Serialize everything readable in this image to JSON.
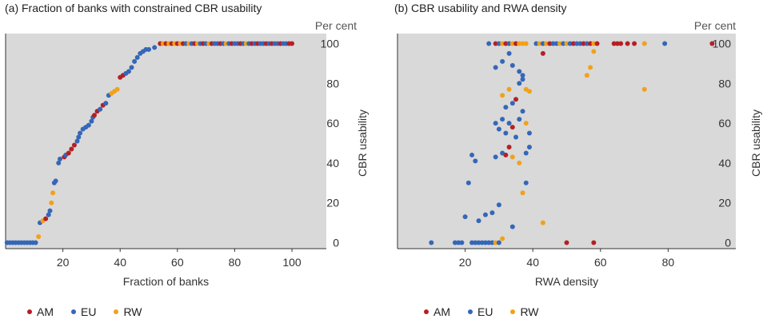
{
  "colors": {
    "AM": "#b52025",
    "EU": "#3567b8",
    "RW": "#f0a21a",
    "plot_bg": "#d9d9d9"
  },
  "legend": [
    {
      "key": "AM",
      "label": "AM"
    },
    {
      "key": "EU",
      "label": "EU"
    },
    {
      "key": "RW",
      "label": "RW"
    }
  ],
  "chart_data": [
    {
      "type": "scatter",
      "title": "(a) Fraction of banks with constrained CBR usability",
      "xlabel": "Fraction of banks",
      "ylabel": "CBR usability",
      "yunit": "Per cent",
      "xlim": [
        0,
        112
      ],
      "ylim": [
        -3,
        105
      ],
      "xticks": [
        20,
        40,
        60,
        80,
        100
      ],
      "yticks": [
        0,
        20,
        40,
        60,
        80,
        100
      ],
      "grid": false,
      "legend_position": "bottom-left",
      "points": [
        {
          "x": 0.5,
          "y": 0,
          "s": "EU"
        },
        {
          "x": 1.5,
          "y": 0,
          "s": "EU"
        },
        {
          "x": 2.5,
          "y": 0,
          "s": "EU"
        },
        {
          "x": 3.5,
          "y": 0,
          "s": "EU"
        },
        {
          "x": 4.5,
          "y": 0,
          "s": "EU"
        },
        {
          "x": 5.5,
          "y": 0,
          "s": "EU"
        },
        {
          "x": 6.5,
          "y": 0,
          "s": "EU"
        },
        {
          "x": 7.5,
          "y": 0,
          "s": "EU"
        },
        {
          "x": 8.5,
          "y": 0,
          "s": "EU"
        },
        {
          "x": 9.5,
          "y": 0,
          "s": "EU"
        },
        {
          "x": 10.5,
          "y": 0,
          "s": "EU"
        },
        {
          "x": 11.5,
          "y": 3,
          "s": "RW"
        },
        {
          "x": 12,
          "y": 10,
          "s": "EU"
        },
        {
          "x": 13,
          "y": 11,
          "s": "RW"
        },
        {
          "x": 14,
          "y": 12,
          "s": "AM"
        },
        {
          "x": 15,
          "y": 14,
          "s": "EU"
        },
        {
          "x": 15.5,
          "y": 16,
          "s": "EU"
        },
        {
          "x": 16,
          "y": 20,
          "s": "RW"
        },
        {
          "x": 16.5,
          "y": 25,
          "s": "RW"
        },
        {
          "x": 17,
          "y": 30,
          "s": "EU"
        },
        {
          "x": 17.5,
          "y": 31,
          "s": "EU"
        },
        {
          "x": 18.5,
          "y": 40,
          "s": "EU"
        },
        {
          "x": 19,
          "y": 42,
          "s": "EU"
        },
        {
          "x": 20.5,
          "y": 43,
          "s": "AM"
        },
        {
          "x": 21,
          "y": 44,
          "s": "EU"
        },
        {
          "x": 22,
          "y": 45,
          "s": "AM"
        },
        {
          "x": 23,
          "y": 47,
          "s": "AM"
        },
        {
          "x": 24,
          "y": 49,
          "s": "AM"
        },
        {
          "x": 25,
          "y": 51,
          "s": "EU"
        },
        {
          "x": 25.5,
          "y": 53,
          "s": "EU"
        },
        {
          "x": 26,
          "y": 55,
          "s": "EU"
        },
        {
          "x": 27,
          "y": 57,
          "s": "EU"
        },
        {
          "x": 28,
          "y": 58,
          "s": "EU"
        },
        {
          "x": 29,
          "y": 59,
          "s": "EU"
        },
        {
          "x": 30,
          "y": 61,
          "s": "EU"
        },
        {
          "x": 30.5,
          "y": 63,
          "s": "EU"
        },
        {
          "x": 31,
          "y": 64,
          "s": "AM"
        },
        {
          "x": 32,
          "y": 66,
          "s": "AM"
        },
        {
          "x": 33,
          "y": 67,
          "s": "EU"
        },
        {
          "x": 34,
          "y": 69,
          "s": "AM"
        },
        {
          "x": 35,
          "y": 70,
          "s": "EU"
        },
        {
          "x": 36,
          "y": 74,
          "s": "EU"
        },
        {
          "x": 37,
          "y": 75,
          "s": "RW"
        },
        {
          "x": 38,
          "y": 76,
          "s": "RW"
        },
        {
          "x": 39,
          "y": 77,
          "s": "RW"
        },
        {
          "x": 40,
          "y": 83,
          "s": "AM"
        },
        {
          "x": 41,
          "y": 84,
          "s": "AM"
        },
        {
          "x": 42,
          "y": 85,
          "s": "EU"
        },
        {
          "x": 43,
          "y": 86,
          "s": "EU"
        },
        {
          "x": 44,
          "y": 88,
          "s": "EU"
        },
        {
          "x": 45,
          "y": 91,
          "s": "EU"
        },
        {
          "x": 46,
          "y": 93,
          "s": "EU"
        },
        {
          "x": 47,
          "y": 95,
          "s": "EU"
        },
        {
          "x": 48,
          "y": 96,
          "s": "EU"
        },
        {
          "x": 49,
          "y": 97,
          "s": "EU"
        },
        {
          "x": 50,
          "y": 97,
          "s": "EU"
        },
        {
          "x": 52,
          "y": 98,
          "s": "EU"
        },
        {
          "x": 54,
          "y": 100,
          "s": "AM"
        },
        {
          "x": 55,
          "y": 100,
          "s": "RW"
        },
        {
          "x": 56,
          "y": 100,
          "s": "AM"
        },
        {
          "x": 57,
          "y": 100,
          "s": "RW"
        },
        {
          "x": 58,
          "y": 100,
          "s": "AM"
        },
        {
          "x": 59,
          "y": 100,
          "s": "RW"
        },
        {
          "x": 60,
          "y": 100,
          "s": "AM"
        },
        {
          "x": 61,
          "y": 100,
          "s": "RW"
        },
        {
          "x": 62,
          "y": 100,
          "s": "AM"
        },
        {
          "x": 63,
          "y": 100,
          "s": "EU"
        },
        {
          "x": 64,
          "y": 100,
          "s": "RW"
        },
        {
          "x": 65,
          "y": 100,
          "s": "EU"
        },
        {
          "x": 66,
          "y": 100,
          "s": "AM"
        },
        {
          "x": 67,
          "y": 100,
          "s": "RW"
        },
        {
          "x": 68,
          "y": 100,
          "s": "EU"
        },
        {
          "x": 69,
          "y": 100,
          "s": "AM"
        },
        {
          "x": 70,
          "y": 100,
          "s": "EU"
        },
        {
          "x": 71,
          "y": 100,
          "s": "RW"
        },
        {
          "x": 72,
          "y": 100,
          "s": "AM"
        },
        {
          "x": 73,
          "y": 100,
          "s": "EU"
        },
        {
          "x": 74,
          "y": 100,
          "s": "EU"
        },
        {
          "x": 75,
          "y": 100,
          "s": "AM"
        },
        {
          "x": 76,
          "y": 100,
          "s": "EU"
        },
        {
          "x": 77,
          "y": 100,
          "s": "RW"
        },
        {
          "x": 78,
          "y": 100,
          "s": "EU"
        },
        {
          "x": 79,
          "y": 100,
          "s": "AM"
        },
        {
          "x": 80,
          "y": 100,
          "s": "EU"
        },
        {
          "x": 81,
          "y": 100,
          "s": "EU"
        },
        {
          "x": 82,
          "y": 100,
          "s": "AM"
        },
        {
          "x": 83,
          "y": 100,
          "s": "EU"
        },
        {
          "x": 84,
          "y": 100,
          "s": "RW"
        },
        {
          "x": 85,
          "y": 100,
          "s": "EU"
        },
        {
          "x": 86,
          "y": 100,
          "s": "AM"
        },
        {
          "x": 87,
          "y": 100,
          "s": "EU"
        },
        {
          "x": 88,
          "y": 100,
          "s": "AM"
        },
        {
          "x": 89,
          "y": 100,
          "s": "EU"
        },
        {
          "x": 90,
          "y": 100,
          "s": "EU"
        },
        {
          "x": 91,
          "y": 100,
          "s": "AM"
        },
        {
          "x": 92,
          "y": 100,
          "s": "EU"
        },
        {
          "x": 93,
          "y": 100,
          "s": "AM"
        },
        {
          "x": 94,
          "y": 100,
          "s": "EU"
        },
        {
          "x": 95,
          "y": 100,
          "s": "EU"
        },
        {
          "x": 96,
          "y": 100,
          "s": "AM"
        },
        {
          "x": 97,
          "y": 100,
          "s": "EU"
        },
        {
          "x": 98,
          "y": 100,
          "s": "EU"
        },
        {
          "x": 99,
          "y": 100,
          "s": "AM"
        },
        {
          "x": 100,
          "y": 100,
          "s": "AM"
        }
      ]
    },
    {
      "type": "scatter",
      "title": "(b) CBR usability and RWA density",
      "xlabel": "RWA density",
      "ylabel": "CBR usability",
      "yunit": "Per cent",
      "xlim": [
        0,
        100
      ],
      "ylim": [
        -3,
        105
      ],
      "xticks": [
        20,
        40,
        60,
        80
      ],
      "yticks": [
        0,
        20,
        40,
        60,
        80,
        100
      ],
      "grid": false,
      "legend_position": "bottom-left",
      "points": [
        {
          "x": 10,
          "y": 0,
          "s": "EU"
        },
        {
          "x": 17,
          "y": 0,
          "s": "EU"
        },
        {
          "x": 18,
          "y": 0,
          "s": "EU"
        },
        {
          "x": 19,
          "y": 0,
          "s": "EU"
        },
        {
          "x": 22,
          "y": 0,
          "s": "EU"
        },
        {
          "x": 23,
          "y": 0,
          "s": "EU"
        },
        {
          "x": 24,
          "y": 0,
          "s": "EU"
        },
        {
          "x": 25,
          "y": 0,
          "s": "EU"
        },
        {
          "x": 26,
          "y": 0,
          "s": "EU"
        },
        {
          "x": 27,
          "y": 0,
          "s": "EU"
        },
        {
          "x": 28,
          "y": 0,
          "s": "EU"
        },
        {
          "x": 29,
          "y": 0,
          "s": "RW"
        },
        {
          "x": 30,
          "y": 0,
          "s": "EU"
        },
        {
          "x": 50,
          "y": 0,
          "s": "AM"
        },
        {
          "x": 58,
          "y": 0,
          "s": "AM"
        },
        {
          "x": 31,
          "y": 2,
          "s": "RW"
        },
        {
          "x": 20,
          "y": 13,
          "s": "EU"
        },
        {
          "x": 24,
          "y": 11,
          "s": "EU"
        },
        {
          "x": 26,
          "y": 14,
          "s": "EU"
        },
        {
          "x": 28,
          "y": 15,
          "s": "EU"
        },
        {
          "x": 30,
          "y": 19,
          "s": "EU"
        },
        {
          "x": 34,
          "y": 8,
          "s": "EU"
        },
        {
          "x": 43,
          "y": 10,
          "s": "RW"
        },
        {
          "x": 21,
          "y": 30,
          "s": "EU"
        },
        {
          "x": 22,
          "y": 44,
          "s": "EU"
        },
        {
          "x": 23,
          "y": 41,
          "s": "EU"
        },
        {
          "x": 29,
          "y": 43,
          "s": "EU"
        },
        {
          "x": 31,
          "y": 45,
          "s": "EU"
        },
        {
          "x": 32,
          "y": 44,
          "s": "AM"
        },
        {
          "x": 33,
          "y": 48,
          "s": "AM"
        },
        {
          "x": 34,
          "y": 43,
          "s": "RW"
        },
        {
          "x": 36,
          "y": 40,
          "s": "RW"
        },
        {
          "x": 37,
          "y": 25,
          "s": "RW"
        },
        {
          "x": 38,
          "y": 30,
          "s": "EU"
        },
        {
          "x": 38,
          "y": 45,
          "s": "EU"
        },
        {
          "x": 39,
          "y": 48,
          "s": "EU"
        },
        {
          "x": 29,
          "y": 60,
          "s": "EU"
        },
        {
          "x": 30,
          "y": 57,
          "s": "EU"
        },
        {
          "x": 31,
          "y": 62,
          "s": "EU"
        },
        {
          "x": 32,
          "y": 55,
          "s": "EU"
        },
        {
          "x": 33,
          "y": 60,
          "s": "EU"
        },
        {
          "x": 34,
          "y": 58,
          "s": "AM"
        },
        {
          "x": 35,
          "y": 53,
          "s": "EU"
        },
        {
          "x": 36,
          "y": 62,
          "s": "EU"
        },
        {
          "x": 37,
          "y": 66,
          "s": "EU"
        },
        {
          "x": 38,
          "y": 60,
          "s": "RW"
        },
        {
          "x": 39,
          "y": 55,
          "s": "EU"
        },
        {
          "x": 31,
          "y": 74,
          "s": "RW"
        },
        {
          "x": 32,
          "y": 68,
          "s": "EU"
        },
        {
          "x": 33,
          "y": 77,
          "s": "RW"
        },
        {
          "x": 34,
          "y": 70,
          "s": "EU"
        },
        {
          "x": 35,
          "y": 72,
          "s": "AM"
        },
        {
          "x": 36,
          "y": 80,
          "s": "EU"
        },
        {
          "x": 37,
          "y": 82,
          "s": "EU"
        },
        {
          "x": 38,
          "y": 77,
          "s": "RW"
        },
        {
          "x": 39,
          "y": 76,
          "s": "RW"
        },
        {
          "x": 29,
          "y": 88,
          "s": "EU"
        },
        {
          "x": 31,
          "y": 91,
          "s": "EU"
        },
        {
          "x": 33,
          "y": 95,
          "s": "EU"
        },
        {
          "x": 34,
          "y": 89,
          "s": "EU"
        },
        {
          "x": 36,
          "y": 86,
          "s": "EU"
        },
        {
          "x": 37,
          "y": 84,
          "s": "EU"
        },
        {
          "x": 43,
          "y": 95,
          "s": "AM"
        },
        {
          "x": 27,
          "y": 100,
          "s": "EU"
        },
        {
          "x": 29,
          "y": 100,
          "s": "AM"
        },
        {
          "x": 30,
          "y": 100,
          "s": "EU"
        },
        {
          "x": 31,
          "y": 100,
          "s": "RW"
        },
        {
          "x": 32,
          "y": 100,
          "s": "AM"
        },
        {
          "x": 33,
          "y": 100,
          "s": "EU"
        },
        {
          "x": 34,
          "y": 100,
          "s": "RW"
        },
        {
          "x": 35,
          "y": 100,
          "s": "AM"
        },
        {
          "x": 36,
          "y": 100,
          "s": "RW"
        },
        {
          "x": 37,
          "y": 100,
          "s": "RW"
        },
        {
          "x": 38,
          "y": 100,
          "s": "RW"
        },
        {
          "x": 41,
          "y": 100,
          "s": "EU"
        },
        {
          "x": 42,
          "y": 100,
          "s": "RW"
        },
        {
          "x": 43,
          "y": 100,
          "s": "EU"
        },
        {
          "x": 44,
          "y": 100,
          "s": "RW"
        },
        {
          "x": 45,
          "y": 100,
          "s": "AM"
        },
        {
          "x": 46,
          "y": 100,
          "s": "EU"
        },
        {
          "x": 47,
          "y": 100,
          "s": "EU"
        },
        {
          "x": 48,
          "y": 100,
          "s": "RW"
        },
        {
          "x": 49,
          "y": 100,
          "s": "EU"
        },
        {
          "x": 50,
          "y": 100,
          "s": "RW"
        },
        {
          "x": 51,
          "y": 100,
          "s": "EU"
        },
        {
          "x": 52,
          "y": 100,
          "s": "AM"
        },
        {
          "x": 53,
          "y": 100,
          "s": "EU"
        },
        {
          "x": 54,
          "y": 100,
          "s": "EU"
        },
        {
          "x": 55,
          "y": 100,
          "s": "AM"
        },
        {
          "x": 56,
          "y": 100,
          "s": "EU"
        },
        {
          "x": 57,
          "y": 100,
          "s": "AM"
        },
        {
          "x": 58,
          "y": 100,
          "s": "RW"
        },
        {
          "x": 59,
          "y": 100,
          "s": "AM"
        },
        {
          "x": 64,
          "y": 100,
          "s": "AM"
        },
        {
          "x": 65,
          "y": 100,
          "s": "AM"
        },
        {
          "x": 66,
          "y": 100,
          "s": "AM"
        },
        {
          "x": 68,
          "y": 100,
          "s": "AM"
        },
        {
          "x": 70,
          "y": 100,
          "s": "AM"
        },
        {
          "x": 73,
          "y": 100,
          "s": "RW"
        },
        {
          "x": 79,
          "y": 100,
          "s": "EU"
        },
        {
          "x": 93,
          "y": 100,
          "s": "AM"
        },
        {
          "x": 56,
          "y": 84,
          "s": "RW"
        },
        {
          "x": 57,
          "y": 88,
          "s": "RW"
        },
        {
          "x": 58,
          "y": 96,
          "s": "RW"
        },
        {
          "x": 73,
          "y": 77,
          "s": "RW"
        }
      ]
    }
  ]
}
